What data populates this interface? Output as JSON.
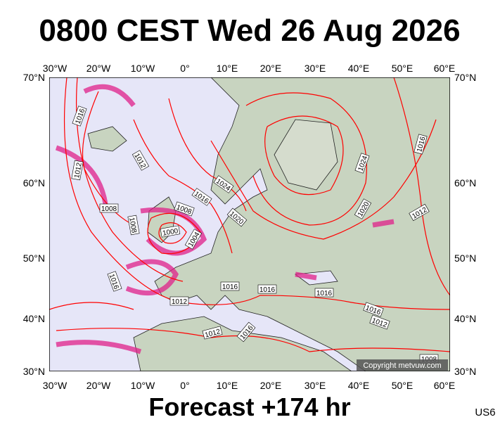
{
  "title": "0800 CEST Wed 26 Aug 2026",
  "footer": "Forecast +174 hr",
  "model": "US6",
  "copyright": "Copyright metvuw.com",
  "longitude_labels": [
    "30°W",
    "20°W",
    "10°W",
    "0°",
    "10°E",
    "20°E",
    "30°E",
    "40°E",
    "50°E",
    "60°E"
  ],
  "latitude_labels": [
    "70°N",
    "60°N",
    "50°N",
    "40°N",
    "30°N"
  ],
  "isobar_labels": [
    "1016",
    "1012",
    "1012",
    "1008",
    "1008",
    "1008",
    "1000",
    "1004",
    "1016",
    "1024",
    "1020",
    "1016",
    "1012",
    "1016",
    "1016",
    "1016",
    "1012",
    "1016",
    "1024",
    "1020",
    "1016",
    "1012",
    "1016",
    "1012",
    "1008"
  ]
}
